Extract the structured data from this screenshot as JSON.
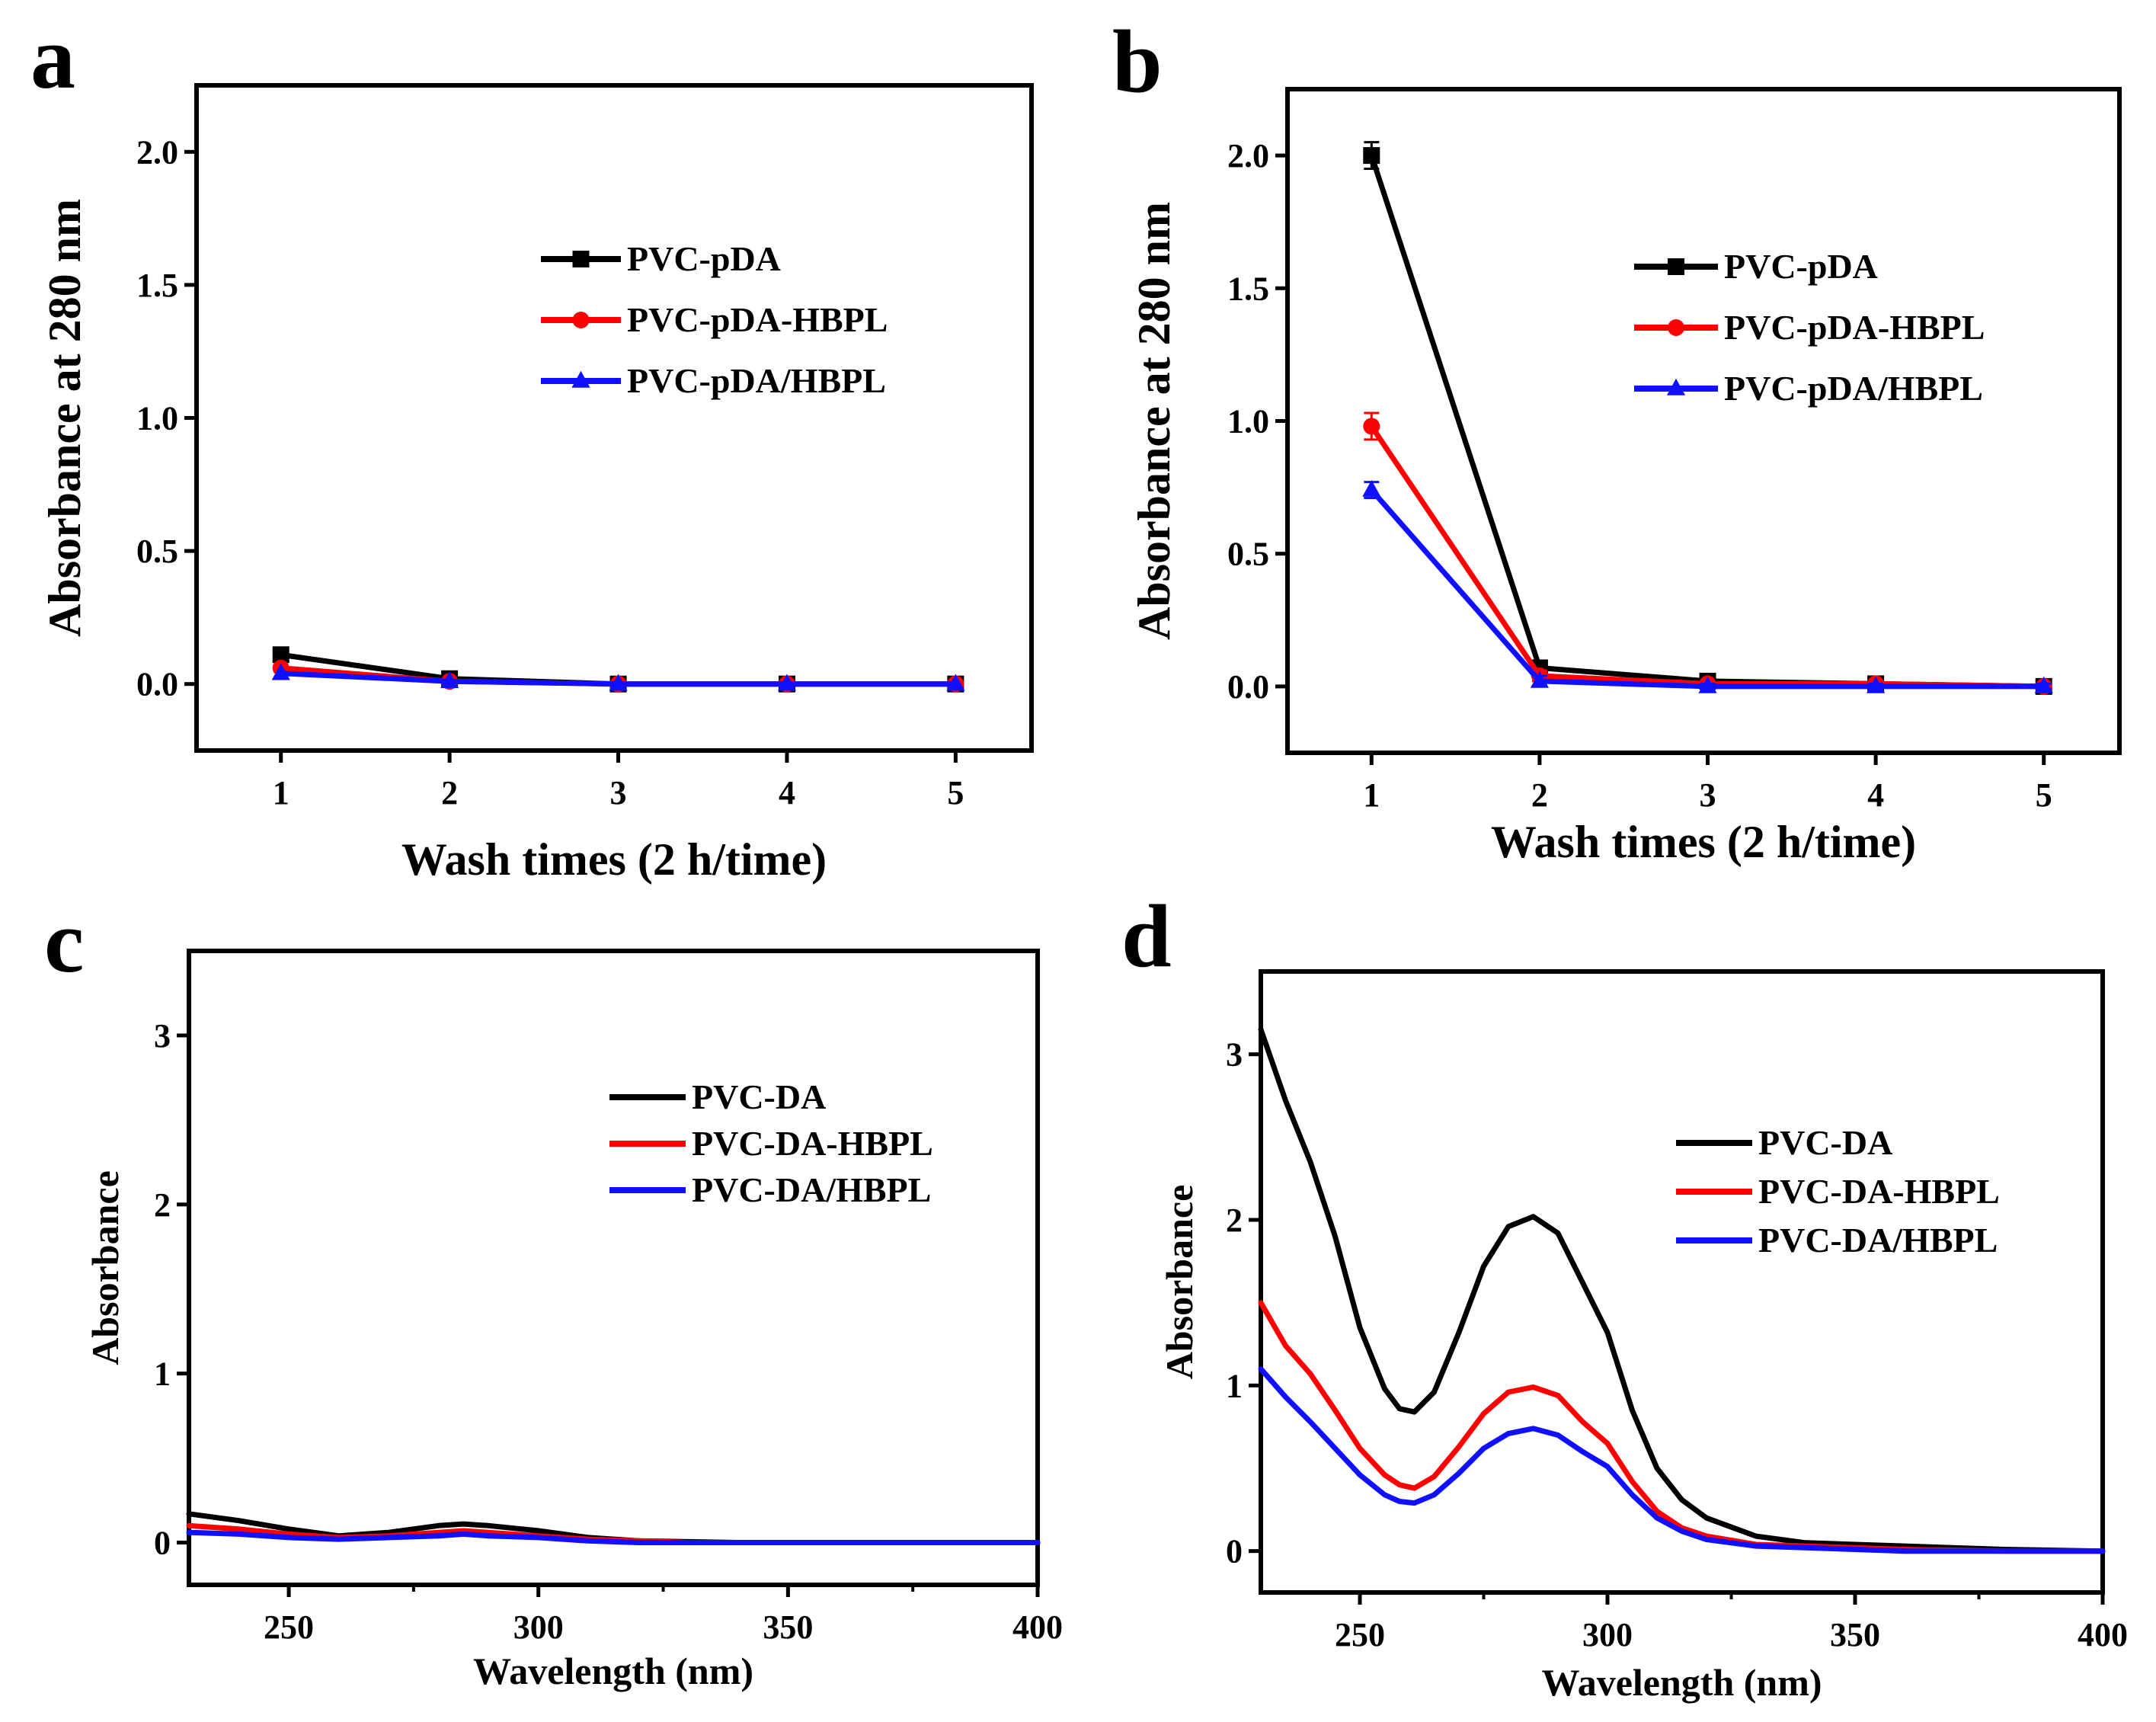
{
  "panels": {
    "a": "a",
    "b": "b",
    "c": "c",
    "d": "d"
  },
  "colors": {
    "black": "#000000",
    "red": "#ff0000",
    "blue": "#1010ff"
  },
  "chart_data": [
    {
      "id": "a",
      "type": "line",
      "title": "",
      "xlabel": "Wash times (2 h/time)",
      "ylabel": "Absorbance at 280 nm",
      "xlim": [
        0.5,
        5.45
      ],
      "ylim": [
        -0.25,
        2.25
      ],
      "xticks": [
        1,
        2,
        3,
        4,
        5
      ],
      "yticks": [
        0.0,
        0.5,
        1.0,
        1.5,
        2.0
      ],
      "ytick_labels": [
        "0.0",
        "0.5",
        "1.0",
        "1.5",
        "2.0"
      ],
      "x": [
        1,
        2,
        3,
        4,
        5
      ],
      "legend_position": "center-right",
      "series": [
        {
          "name": "PVC-pDA",
          "color": "#000000",
          "marker": "square",
          "values": [
            0.11,
            0.02,
            0.0,
            0.0,
            0.0
          ]
        },
        {
          "name": "PVC-pDA-HBPL",
          "color": "#ff0000",
          "marker": "circle",
          "values": [
            0.06,
            0.01,
            0.0,
            0.0,
            0.0
          ]
        },
        {
          "name": "PVC-pDA/HBPL",
          "color": "#1010ff",
          "marker": "triangle",
          "values": [
            0.04,
            0.01,
            0.0,
            0.0,
            0.0
          ]
        }
      ]
    },
    {
      "id": "b",
      "type": "line",
      "title": "",
      "xlabel": "Wash times (2 h/time)",
      "ylabel": "Absorbance at 280 nm",
      "xlim": [
        0.5,
        5.45
      ],
      "ylim": [
        -0.25,
        2.25
      ],
      "xticks": [
        1,
        2,
        3,
        4,
        5
      ],
      "yticks": [
        0.0,
        0.5,
        1.0,
        1.5,
        2.0
      ],
      "ytick_labels": [
        "0.0",
        "0.5",
        "1.0",
        "1.5",
        "2.0"
      ],
      "x": [
        1,
        2,
        3,
        4,
        5
      ],
      "legend_position": "center-right",
      "series": [
        {
          "name": "PVC-pDA",
          "color": "#000000",
          "marker": "square",
          "values": [
            2.0,
            0.07,
            0.02,
            0.01,
            0.0
          ],
          "errors": [
            0.05,
            0.02,
            0.01,
            0.01,
            0.01
          ]
        },
        {
          "name": "PVC-pDA-HBPL",
          "color": "#ff0000",
          "marker": "circle",
          "values": [
            0.98,
            0.04,
            0.01,
            0.01,
            0.0
          ],
          "errors": [
            0.05,
            0.02,
            0.01,
            0.01,
            0.01
          ]
        },
        {
          "name": "PVC-pDA/HBPL",
          "color": "#1010ff",
          "marker": "triangle",
          "values": [
            0.74,
            0.02,
            0.0,
            0.0,
            0.0
          ],
          "errors": [
            0.03,
            0.02,
            0.01,
            0.01,
            0.01
          ]
        }
      ]
    },
    {
      "id": "c",
      "type": "line",
      "title": "",
      "xlabel": "Wavelength (nm)",
      "ylabel": "Absorbance",
      "xlim": [
        230,
        400
      ],
      "ylim": [
        -0.25,
        3.5
      ],
      "xticks": [
        250,
        300,
        350,
        400
      ],
      "yticks": [
        0,
        1,
        2,
        3
      ],
      "ytick_labels": [
        "0",
        "1",
        "2",
        "3"
      ],
      "x": [
        230,
        240,
        250,
        260,
        270,
        280,
        285,
        290,
        300,
        310,
        320,
        330,
        340,
        350,
        360,
        380,
        400
      ],
      "legend_position": "center-right",
      "series": [
        {
          "name": "PVC-DA",
          "color": "#000000",
          "values": [
            0.17,
            0.13,
            0.08,
            0.04,
            0.06,
            0.1,
            0.11,
            0.1,
            0.07,
            0.03,
            0.01,
            0.005,
            0.0,
            0.0,
            0.0,
            0.0,
            0.0
          ]
        },
        {
          "name": "PVC-DA-HBPL",
          "color": "#ff0000",
          "values": [
            0.1,
            0.08,
            0.05,
            0.03,
            0.04,
            0.06,
            0.07,
            0.06,
            0.04,
            0.02,
            0.01,
            0.0,
            0.0,
            0.0,
            0.0,
            0.0,
            0.0
          ]
        },
        {
          "name": "PVC-DA/HBPL",
          "color": "#1010ff",
          "values": [
            0.06,
            0.05,
            0.03,
            0.02,
            0.03,
            0.04,
            0.05,
            0.04,
            0.03,
            0.01,
            0.0,
            0.0,
            0.0,
            0.0,
            0.0,
            0.0,
            0.0
          ]
        }
      ]
    },
    {
      "id": "d",
      "type": "line",
      "title": "",
      "xlabel": "Wavelength (nm)",
      "ylabel": "Absorbance",
      "xlim": [
        230,
        400
      ],
      "ylim": [
        -0.25,
        3.5
      ],
      "xticks": [
        250,
        300,
        350,
        400
      ],
      "yticks": [
        0,
        1,
        2,
        3
      ],
      "ytick_labels": [
        "0",
        "1",
        "2",
        "3"
      ],
      "x": [
        230,
        235,
        240,
        245,
        250,
        255,
        258,
        261,
        265,
        270,
        275,
        280,
        285,
        290,
        295,
        300,
        305,
        310,
        315,
        320,
        330,
        340,
        350,
        360,
        380,
        400
      ],
      "legend_position": "center-right",
      "series": [
        {
          "name": "PVC-DA",
          "color": "#000000",
          "values": [
            3.15,
            2.72,
            2.35,
            1.9,
            1.35,
            0.98,
            0.86,
            0.84,
            0.96,
            1.32,
            1.72,
            1.96,
            2.02,
            1.92,
            1.62,
            1.32,
            0.85,
            0.5,
            0.31,
            0.2,
            0.09,
            0.05,
            0.04,
            0.03,
            0.01,
            0.0
          ]
        },
        {
          "name": "PVC-DA-HBPL",
          "color": "#ff0000",
          "values": [
            1.5,
            1.24,
            1.07,
            0.85,
            0.62,
            0.46,
            0.4,
            0.38,
            0.45,
            0.63,
            0.83,
            0.96,
            0.99,
            0.94,
            0.78,
            0.65,
            0.42,
            0.24,
            0.14,
            0.09,
            0.04,
            0.03,
            0.02,
            0.01,
            0.0,
            0.0
          ]
        },
        {
          "name": "PVC-DA/HBPL",
          "color": "#1010ff",
          "values": [
            1.1,
            0.93,
            0.78,
            0.62,
            0.46,
            0.34,
            0.3,
            0.29,
            0.34,
            0.47,
            0.62,
            0.71,
            0.74,
            0.7,
            0.6,
            0.51,
            0.34,
            0.2,
            0.12,
            0.07,
            0.03,
            0.02,
            0.01,
            0.0,
            0.0,
            0.0
          ]
        }
      ]
    }
  ]
}
